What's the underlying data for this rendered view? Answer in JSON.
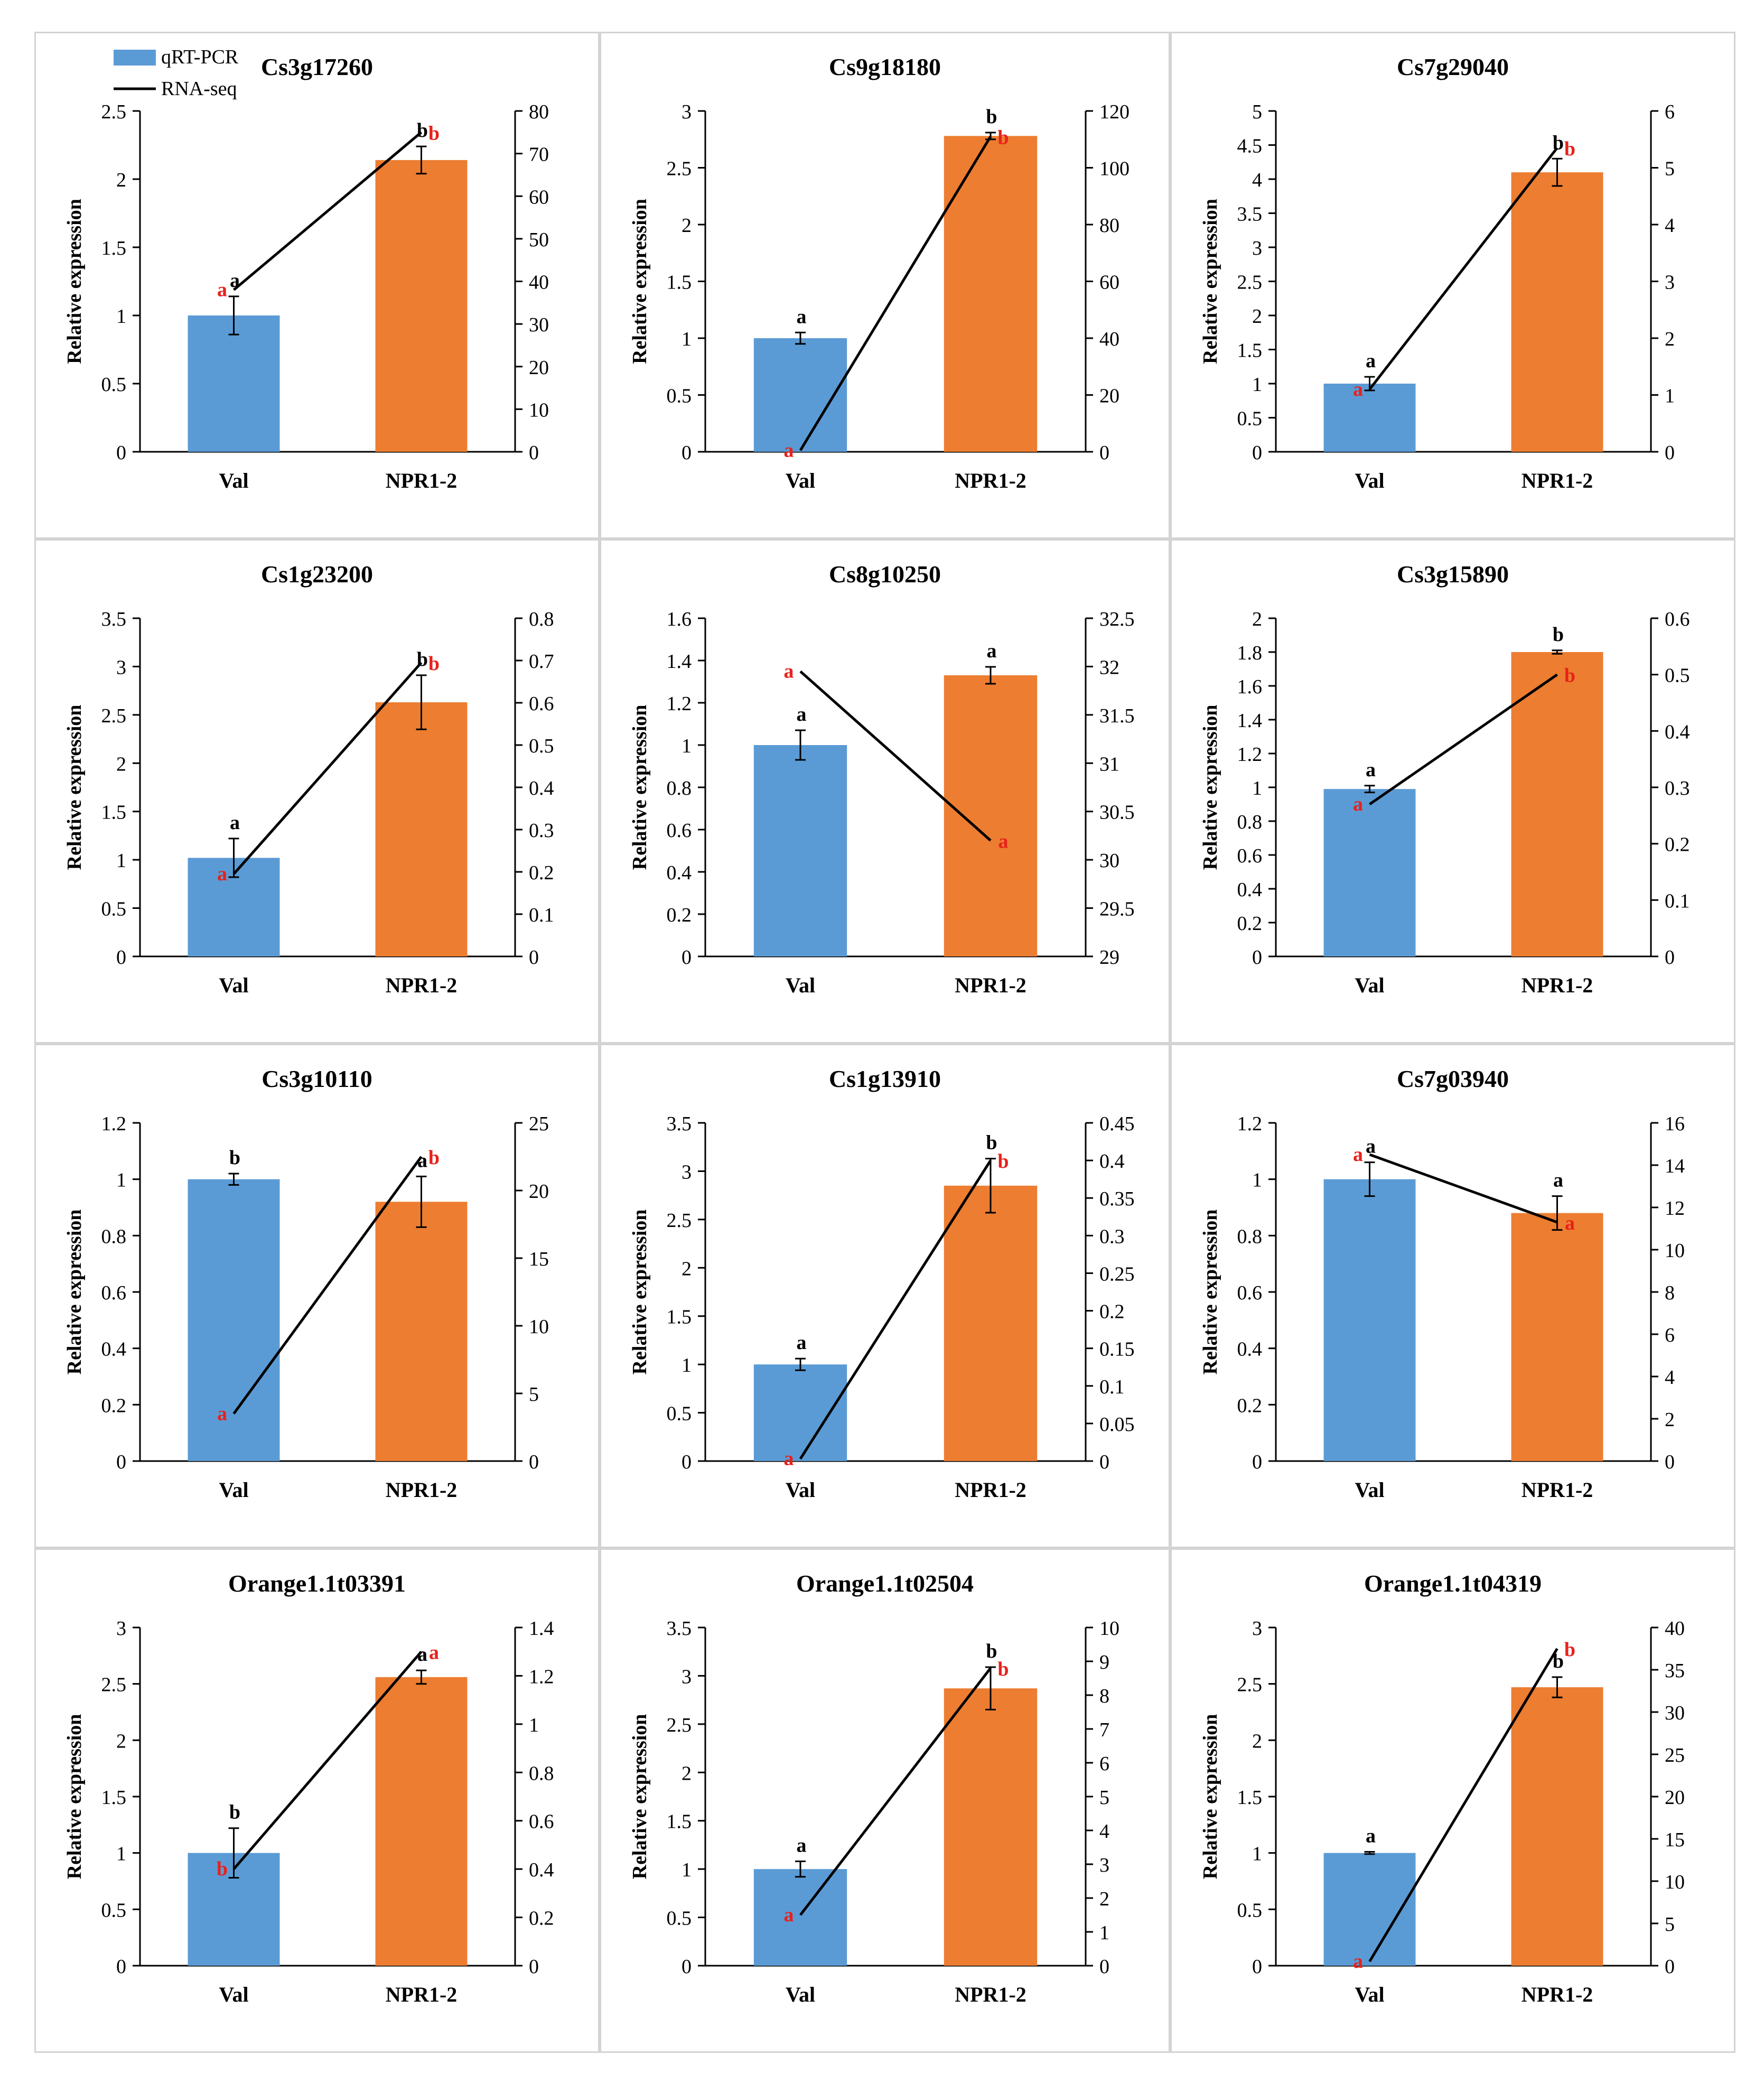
{
  "legend": {
    "items": [
      {
        "label": "qRT-PCR",
        "color": "#5b9bd5",
        "kind": "bar"
      },
      {
        "label": "RNA-seq",
        "color": "#000000",
        "kind": "line"
      }
    ]
  },
  "colors": {
    "val_bar": "#5b9bd5",
    "npr_bar": "#ed7d31",
    "line": "#000000",
    "letter_black": "#000000",
    "letter_red": "#e8211b"
  },
  "chart_data": [
    {
      "type": "bar",
      "title": "Cs3g17260",
      "categories": [
        "Val",
        "NPR1-2"
      ],
      "ylabel": "Relative expression",
      "series": [
        {
          "name": "qRT-PCR",
          "values": [
            1.0,
            2.14
          ],
          "errors": [
            0.14,
            0.1
          ]
        },
        {
          "name": "RNA-seq",
          "values": [
            38,
            75
          ]
        }
      ],
      "ylim": [
        0,
        2.5
      ],
      "yticks": [
        "0",
        "0.5",
        "1",
        "1.5",
        "2",
        "2.5"
      ],
      "y2lim": [
        0,
        80
      ],
      "y2ticks": [
        "0",
        "10",
        "20",
        "30",
        "40",
        "50",
        "60",
        "70",
        "80"
      ],
      "annotations": {
        "bar": [
          "a",
          "b"
        ],
        "line": [
          "a",
          "b"
        ]
      }
    },
    {
      "type": "bar",
      "title": "Cs9g18180",
      "categories": [
        "Val",
        "NPR1-2"
      ],
      "ylabel": "Relative expression",
      "series": [
        {
          "name": "qRT-PCR",
          "values": [
            1.0,
            2.78
          ],
          "errors": [
            0.05,
            0.03
          ]
        },
        {
          "name": "RNA-seq",
          "values": [
            0.5,
            111
          ]
        }
      ],
      "ylim": [
        0,
        3
      ],
      "yticks": [
        "0",
        "0.5",
        "1",
        "1.5",
        "2",
        "2.5",
        "3"
      ],
      "y2lim": [
        0,
        120
      ],
      "y2ticks": [
        "0",
        "20",
        "40",
        "60",
        "80",
        "100",
        "120"
      ],
      "annotations": {
        "bar": [
          "a",
          "b"
        ],
        "line": [
          "a",
          "b"
        ]
      }
    },
    {
      "type": "bar",
      "title": "Cs7g29040",
      "categories": [
        "Val",
        "NPR1-2"
      ],
      "ylabel": "Relative expression",
      "series": [
        {
          "name": "qRT-PCR",
          "values": [
            1.0,
            4.1
          ],
          "errors": [
            0.1,
            0.2
          ]
        },
        {
          "name": "RNA-seq",
          "values": [
            1.1,
            5.35
          ]
        }
      ],
      "ylim": [
        0,
        5
      ],
      "yticks": [
        "0",
        "0.5",
        "1",
        "1.5",
        "2",
        "2.5",
        "3",
        "3.5",
        "4",
        "4.5",
        "5"
      ],
      "y2lim": [
        0,
        6
      ],
      "y2ticks": [
        "0",
        "1",
        "2",
        "3",
        "4",
        "5",
        "6"
      ],
      "annotations": {
        "bar": [
          "a",
          "b"
        ],
        "line": [
          "a",
          "b"
        ]
      }
    },
    {
      "type": "bar",
      "title": "Cs1g23200",
      "categories": [
        "Val",
        "NPR1-2"
      ],
      "ylabel": "Relative expression",
      "series": [
        {
          "name": "qRT-PCR",
          "values": [
            1.02,
            2.63
          ],
          "errors": [
            0.2,
            0.28
          ]
        },
        {
          "name": "RNA-seq",
          "values": [
            0.195,
            0.695
          ]
        }
      ],
      "ylim": [
        0,
        3.5
      ],
      "yticks": [
        "0",
        "0.5",
        "1",
        "1.5",
        "2",
        "2.5",
        "3",
        "3.5"
      ],
      "y2lim": [
        0,
        0.8
      ],
      "y2ticks": [
        "0",
        "0.1",
        "0.2",
        "0.3",
        "0.4",
        "0.5",
        "0.6",
        "0.7",
        "0.8"
      ],
      "annotations": {
        "bar": [
          "a",
          "b"
        ],
        "line": [
          "a",
          "b"
        ]
      }
    },
    {
      "type": "bar",
      "title": "Cs8g10250",
      "categories": [
        "Val",
        "NPR1-2"
      ],
      "ylabel": "Relative expression",
      "series": [
        {
          "name": "qRT-PCR",
          "values": [
            1.0,
            1.33
          ],
          "errors": [
            0.07,
            0.04
          ]
        },
        {
          "name": "RNA-seq",
          "values": [
            31.95,
            30.2
          ]
        }
      ],
      "ylim": [
        0,
        1.6
      ],
      "yticks": [
        "0",
        "0.2",
        "0.4",
        "0.6",
        "0.8",
        "1",
        "1.2",
        "1.4",
        "1.6"
      ],
      "y2lim": [
        29,
        32.5
      ],
      "y2ticks": [
        "29",
        "29.5",
        "30",
        "30.5",
        "31",
        "31.5",
        "32",
        "32.5"
      ],
      "annotations": {
        "bar": [
          "a",
          "a"
        ],
        "line": [
          "a",
          "a"
        ]
      }
    },
    {
      "type": "bar",
      "title": "Cs3g15890",
      "categories": [
        "Val",
        "NPR1-2"
      ],
      "ylabel": "Relative expression",
      "series": [
        {
          "name": "qRT-PCR",
          "values": [
            0.99,
            1.8
          ],
          "errors": [
            0.02,
            0.01
          ]
        },
        {
          "name": "RNA-seq",
          "values": [
            0.27,
            0.5
          ]
        }
      ],
      "ylim": [
        0,
        2
      ],
      "yticks": [
        "0",
        "0.2",
        "0.4",
        "0.6",
        "0.8",
        "1",
        "1.2",
        "1.4",
        "1.6",
        "1.8",
        "2"
      ],
      "y2lim": [
        0,
        0.6
      ],
      "y2ticks": [
        "0",
        "0.1",
        "0.2",
        "0.3",
        "0.4",
        "0.5",
        "0.6"
      ],
      "annotations": {
        "bar": [
          "a",
          "b"
        ],
        "line": [
          "a",
          "b"
        ]
      }
    },
    {
      "type": "bar",
      "title": "Cs3g10110",
      "categories": [
        "Val",
        "NPR1-2"
      ],
      "ylabel": "Relative expression",
      "series": [
        {
          "name": "qRT-PCR",
          "values": [
            1.0,
            0.92
          ],
          "errors": [
            0.02,
            0.09
          ]
        },
        {
          "name": "RNA-seq",
          "values": [
            3.5,
            22.5
          ]
        }
      ],
      "ylim": [
        0,
        1.2
      ],
      "yticks": [
        "0",
        "0.2",
        "0.4",
        "0.6",
        "0.8",
        "1",
        "1.2"
      ],
      "y2lim": [
        0,
        25
      ],
      "y2ticks": [
        "0",
        "5",
        "10",
        "15",
        "20",
        "25"
      ],
      "annotations": {
        "bar": [
          "b",
          "a"
        ],
        "line": [
          "a",
          "b"
        ]
      }
    },
    {
      "type": "bar",
      "title": "Cs1g13910",
      "categories": [
        "Val",
        "NPR1-2"
      ],
      "ylabel": "Relative expression",
      "series": [
        {
          "name": "qRT-PCR",
          "values": [
            1.0,
            2.85
          ],
          "errors": [
            0.06,
            0.28
          ]
        },
        {
          "name": "RNA-seq",
          "values": [
            0.003,
            0.4
          ]
        }
      ],
      "ylim": [
        0,
        3.5
      ],
      "yticks": [
        "0",
        "0.5",
        "1",
        "1.5",
        "2",
        "2.5",
        "3",
        "3.5"
      ],
      "y2lim": [
        0,
        0.45
      ],
      "y2ticks": [
        "0",
        "0.05",
        "0.1",
        "0.15",
        "0.2",
        "0.25",
        "0.3",
        "0.35",
        "0.4",
        "0.45"
      ],
      "annotations": {
        "bar": [
          "a",
          "b"
        ],
        "line": [
          "a",
          "b"
        ]
      }
    },
    {
      "type": "bar",
      "title": "Cs7g03940",
      "categories": [
        "Val",
        "NPR1-2"
      ],
      "ylabel": "Relative expression",
      "series": [
        {
          "name": "qRT-PCR",
          "values": [
            1.0,
            0.88
          ],
          "errors": [
            0.06,
            0.06
          ]
        },
        {
          "name": "RNA-seq",
          "values": [
            14.5,
            11.3
          ]
        }
      ],
      "ylim": [
        0,
        1.2
      ],
      "yticks": [
        "0",
        "0.2",
        "0.4",
        "0.6",
        "0.8",
        "1",
        "1.2"
      ],
      "y2lim": [
        0,
        16
      ],
      "y2ticks": [
        "0",
        "2",
        "4",
        "6",
        "8",
        "10",
        "12",
        "14",
        "16"
      ],
      "annotations": {
        "bar": [
          "a",
          "a"
        ],
        "line": [
          "a",
          "a"
        ]
      }
    },
    {
      "type": "bar",
      "title": "Orange1.1t03391",
      "categories": [
        "Val",
        "NPR1-2"
      ],
      "ylabel": "Relative expression",
      "series": [
        {
          "name": "qRT-PCR",
          "values": [
            1.0,
            2.56
          ],
          "errors": [
            0.22,
            0.06
          ]
        },
        {
          "name": "RNA-seq",
          "values": [
            0.4,
            1.3
          ]
        }
      ],
      "ylim": [
        0,
        3
      ],
      "yticks": [
        "0",
        "0.5",
        "1",
        "1.5",
        "2",
        "2.5",
        "3"
      ],
      "y2lim": [
        0,
        1.4
      ],
      "y2ticks": [
        "0",
        "0.2",
        "0.4",
        "0.6",
        "0.8",
        "1",
        "1.2",
        "1.4"
      ],
      "annotations": {
        "bar": [
          "b",
          "a"
        ],
        "line": [
          "b",
          "a"
        ]
      }
    },
    {
      "type": "bar",
      "title": "Orange1.1t02504",
      "categories": [
        "Val",
        "NPR1-2"
      ],
      "ylabel": "Relative expression",
      "series": [
        {
          "name": "qRT-PCR",
          "values": [
            1.0,
            2.87
          ],
          "errors": [
            0.08,
            0.22
          ]
        },
        {
          "name": "RNA-seq",
          "values": [
            1.5,
            8.8
          ]
        }
      ],
      "ylim": [
        0,
        3.5
      ],
      "yticks": [
        "0",
        "0.5",
        "1",
        "1.5",
        "2",
        "2.5",
        "3",
        "3.5"
      ],
      "y2lim": [
        0,
        10
      ],
      "y2ticks": [
        "0",
        "1",
        "2",
        "3",
        "4",
        "5",
        "6",
        "7",
        "8",
        "9",
        "10"
      ],
      "annotations": {
        "bar": [
          "a",
          "b"
        ],
        "line": [
          "a",
          "b"
        ]
      }
    },
    {
      "type": "bar",
      "title": "Orange1.1t04319",
      "categories": [
        "Val",
        "NPR1-2"
      ],
      "ylabel": "Relative expression",
      "series": [
        {
          "name": "qRT-PCR",
          "values": [
            1.0,
            2.47
          ],
          "errors": [
            0.01,
            0.09
          ]
        },
        {
          "name": "RNA-seq",
          "values": [
            0.5,
            37.5
          ]
        }
      ],
      "ylim": [
        0,
        3
      ],
      "yticks": [
        "0",
        "0.5",
        "1",
        "1.5",
        "2",
        "2.5",
        "3"
      ],
      "y2lim": [
        0,
        40
      ],
      "y2ticks": [
        "0",
        "5",
        "10",
        "15",
        "20",
        "25",
        "30",
        "35",
        "40"
      ],
      "annotations": {
        "bar": [
          "a",
          "b"
        ],
        "line": [
          "a",
          "b"
        ]
      }
    }
  ]
}
